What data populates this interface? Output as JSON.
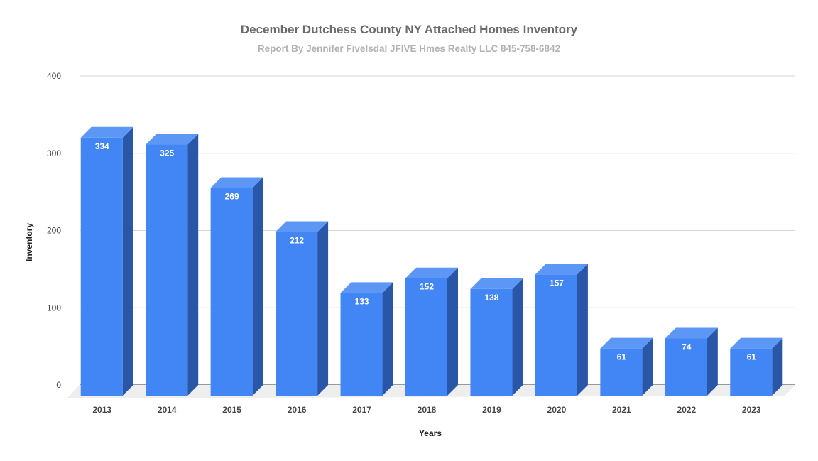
{
  "chart_data": {
    "type": "bar",
    "title": "December Dutchess County NY Attached Homes Inventory",
    "subtitle": "Report By Jennifer Fivelsdal JFIVE Hmes Realty LLC 845-758-6842",
    "xlabel": "Years",
    "ylabel": "Inventory",
    "categories": [
      "2013",
      "2014",
      "2015",
      "2016",
      "2017",
      "2018",
      "2019",
      "2020",
      "2021",
      "2022",
      "2023"
    ],
    "values": [
      334,
      325,
      269,
      212,
      133,
      152,
      138,
      157,
      61,
      74,
      61
    ],
    "ylim": [
      0,
      400
    ],
    "yticks": [
      "0",
      "100",
      "200",
      "300",
      "400"
    ],
    "grid": true,
    "legend": "none",
    "style": "3d-bars",
    "colors": {
      "bar_front": "#4285f4",
      "bar_top": "#5c97f6",
      "bar_side": "#2a56a8",
      "floor": "#eeeeee",
      "grid": "#d6d6d6",
      "title": "#6b6b6b",
      "subtitle": "#b3b3b3"
    }
  }
}
